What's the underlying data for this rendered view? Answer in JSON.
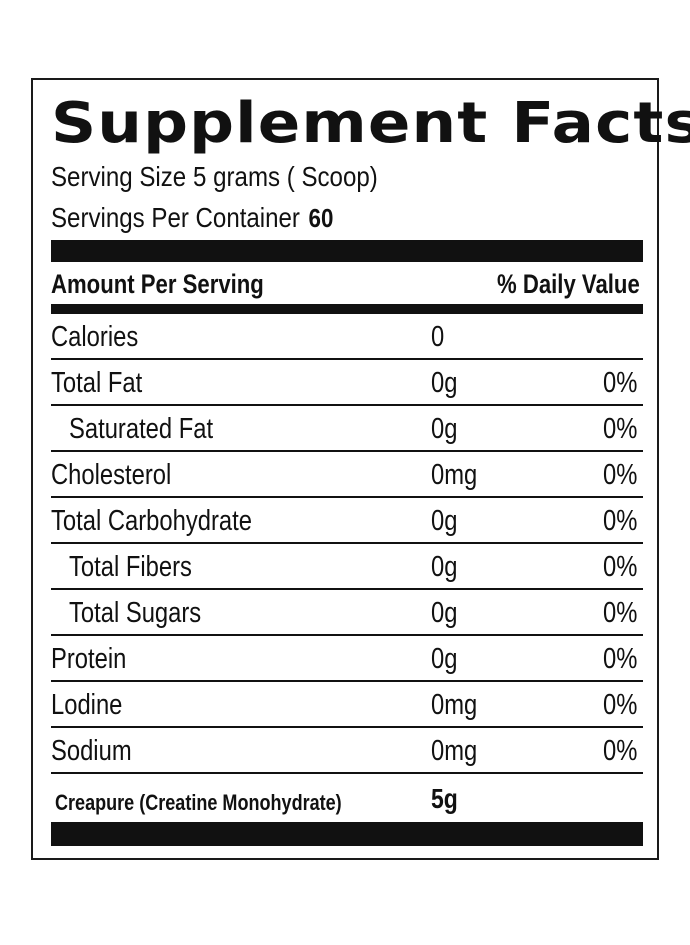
{
  "title": "Supplement Facts",
  "serving": {
    "size_label": "Serving Size",
    "size_value": "5 grams ( Scoop)",
    "per_container_label": "Servings Per Container",
    "per_container_value": "60"
  },
  "header": {
    "amount_label": "Amount Per Serving",
    "daily_value_label": "% Daily Value"
  },
  "nutrients": [
    {
      "name": "Calories",
      "amount": "0",
      "dv": ""
    },
    {
      "name": "Total Fat",
      "amount": "0g",
      "dv": "0%"
    },
    {
      "name": "Saturated Fat",
      "amount": "0g",
      "dv": "0%"
    },
    {
      "name": "Cholesterol",
      "amount": "0mg",
      "dv": "0%"
    },
    {
      "name": "Total Carbohydrate",
      "amount": "0g",
      "dv": "0%"
    },
    {
      "name": "Total Fibers",
      "amount": "0g",
      "dv": "0%"
    },
    {
      "name": "Total Sugars",
      "amount": "0g",
      "dv": "0%"
    },
    {
      "name": "Protein",
      "amount": "0g",
      "dv": "0%"
    },
    {
      "name": "Lodine",
      "amount": "0mg",
      "dv": "0%"
    },
    {
      "name": "Sodium",
      "amount": "0mg",
      "dv": "0%"
    }
  ],
  "active": {
    "name": "Creapure (Creatine Monohydrate)",
    "amount": "5g"
  },
  "colors": {
    "ink": "#111111",
    "background": "#ffffff"
  }
}
